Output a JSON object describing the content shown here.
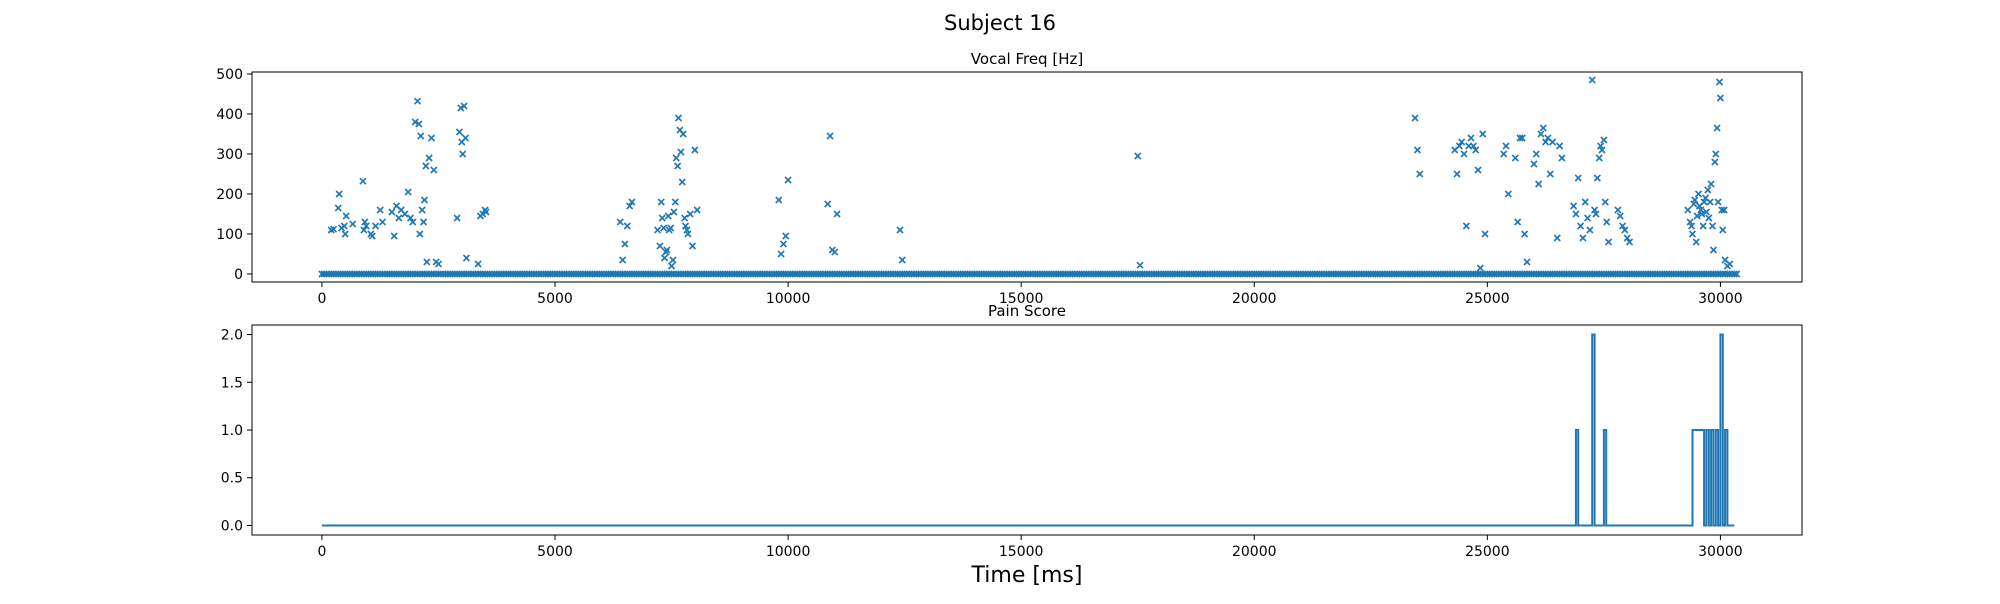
{
  "figure": {
    "title": "Subject 16"
  },
  "chart_data": [
    {
      "type": "scatter",
      "title": "Vocal Freq [Hz]",
      "xlabel": "",
      "ylabel": "",
      "xlim": [
        -1500,
        31750
      ],
      "ylim": [
        -20,
        505
      ],
      "xticks": [
        0,
        5000,
        10000,
        15000,
        20000,
        25000,
        30000
      ],
      "yticks": [
        0,
        100,
        200,
        300,
        400,
        500
      ],
      "marker": "x",
      "color": "#1f77b4",
      "zero_baseline": {
        "x_start": 0,
        "x_end": 30350,
        "step": 50,
        "y": 0
      },
      "series": [
        {
          "x": [
            200,
            250,
            350,
            370,
            420,
            480,
            500,
            520,
            660,
            880,
            900,
            920,
            950,
            1050,
            1080,
            1150,
            1250,
            1300,
            1500,
            1550,
            1600,
            1650,
            1700,
            1780,
            1850,
            1900,
            1950,
            2000,
            2050,
            2080,
            2100,
            2120,
            2150,
            2180,
            2200,
            2230,
            2250,
            2300,
            2350,
            2400,
            2450,
            2500,
            2900,
            2950,
            2980,
            3000,
            3020,
            3050,
            3080,
            3100,
            3350,
            3400,
            3450,
            3500,
            3520,
            6400,
            6450,
            6500,
            6550,
            6600,
            6650,
            7200,
            7250,
            7280,
            7300,
            7330,
            7350,
            7380,
            7400,
            7430,
            7450,
            7480,
            7500,
            7530,
            7550,
            7580,
            7600,
            7630,
            7650,
            7680,
            7700,
            7730,
            7750,
            7780,
            7800,
            7830,
            7850,
            7900,
            7950,
            8000,
            8050,
            9800,
            9850,
            9900,
            9950,
            10000,
            10850,
            10900,
            10950,
            11000,
            11050,
            12400,
            12450,
            17500,
            17550,
            23450,
            23500,
            23550,
            24300,
            24350,
            24400,
            24450,
            24500,
            24550,
            24600,
            24650,
            24700,
            24750,
            24800,
            24850,
            24900,
            24950,
            25350,
            25400,
            25450,
            25600,
            25650,
            25700,
            25750,
            25800,
            25850,
            26000,
            26050,
            26100,
            26150,
            26200,
            26250,
            26300,
            26350,
            26400,
            26500,
            26550,
            26600,
            26850,
            26900,
            26950,
            27000,
            27050,
            27100,
            27150,
            27200,
            27250,
            27300,
            27330,
            27360,
            27400,
            27430,
            27460,
            27500,
            27530,
            27560,
            27600,
            27800,
            27850,
            27900,
            27950,
            28000,
            28050,
            29300,
            29350,
            29380,
            29400,
            29430,
            29450,
            29480,
            29500,
            29530,
            29550,
            29580,
            29600,
            29630,
            29650,
            29680,
            29700,
            29730,
            29750,
            29780,
            29800,
            29830,
            29850,
            29880,
            29900,
            29930,
            29950,
            29980,
            30000,
            30030,
            30050,
            30080,
            30100,
            30150,
            30200
          ],
          "y": [
            110,
            112,
            165,
            200,
            115,
            120,
            100,
            145,
            125,
            232,
            110,
            130,
            120,
            100,
            95,
            120,
            160,
            130,
            155,
            95,
            170,
            140,
            160,
            150,
            205,
            140,
            130,
            380,
            432,
            375,
            100,
            345,
            160,
            130,
            185,
            270,
            30,
            290,
            340,
            260,
            30,
            25,
            140,
            355,
            415,
            330,
            300,
            420,
            340,
            40,
            25,
            145,
            150,
            160,
            155,
            130,
            35,
            75,
            120,
            170,
            180,
            110,
            70,
            180,
            140,
            115,
            40,
            55,
            60,
            145,
            110,
            115,
            20,
            35,
            155,
            180,
            290,
            270,
            390,
            360,
            305,
            230,
            350,
            140,
            120,
            110,
            100,
            150,
            70,
            310,
            160,
            185,
            50,
            75,
            95,
            235,
            175,
            345,
            60,
            55,
            150,
            110,
            35,
            295,
            22,
            390,
            310,
            250,
            310,
            250,
            320,
            330,
            300,
            120,
            320,
            340,
            320,
            310,
            260,
            15,
            350,
            100,
            300,
            320,
            200,
            290,
            130,
            340,
            340,
            100,
            30,
            275,
            300,
            225,
            350,
            365,
            330,
            340,
            250,
            330,
            90,
            320,
            290,
            170,
            150,
            240,
            120,
            90,
            180,
            140,
            110,
            485,
            160,
            150,
            240,
            290,
            320,
            310,
            335,
            180,
            130,
            80,
            160,
            145,
            120,
            110,
            90,
            80,
            160,
            130,
            120,
            100,
            175,
            185,
            80,
            145,
            200,
            170,
            160,
            150,
            120,
            180,
            190,
            155,
            210,
            140,
            180,
            225,
            120,
            60,
            280,
            300,
            365,
            180,
            480,
            440,
            160,
            110,
            160,
            35,
            20,
            25
          ]
        }
      ]
    },
    {
      "type": "line",
      "title": "Pain Score",
      "xlabel": "Time [ms]",
      "ylabel": "",
      "xlim": [
        -1500,
        31750
      ],
      "ylim": [
        -0.1,
        2.1
      ],
      "xticks": [
        0,
        5000,
        10000,
        15000,
        20000,
        25000,
        30000
      ],
      "yticks": [
        0.0,
        0.5,
        1.0,
        1.5,
        2.0
      ],
      "color": "#1f77b4",
      "series": [
        {
          "x": [
            0,
            26900,
            26900,
            26950,
            26950,
            27250,
            27250,
            27300,
            27300,
            27500,
            27500,
            27550,
            27550,
            29400,
            29400,
            29650,
            29650,
            29700,
            29700,
            29750,
            29750,
            29800,
            29800,
            29850,
            29850,
            29900,
            29900,
            29950,
            29950,
            30000,
            30000,
            30050,
            30050,
            30100,
            30100,
            30150,
            30150,
            30300
          ],
          "y": [
            0,
            0,
            1,
            1,
            0,
            0,
            2,
            2,
            0,
            0,
            1,
            1,
            0,
            0,
            1,
            1,
            0,
            0,
            1,
            1,
            0,
            0,
            1,
            1,
            0,
            0,
            1,
            1,
            0,
            0,
            2,
            2,
            0,
            0,
            1,
            1,
            0,
            0
          ]
        }
      ]
    }
  ]
}
